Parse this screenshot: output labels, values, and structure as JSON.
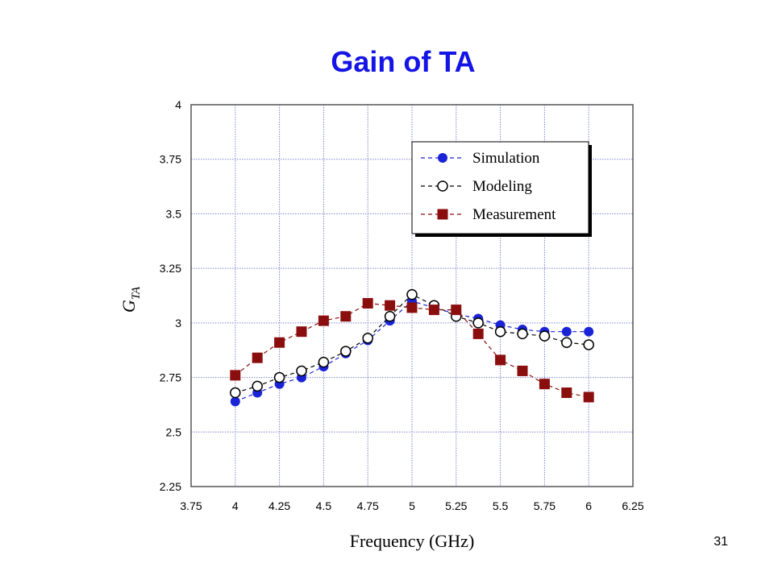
{
  "slide": {
    "title": "Gain of TA",
    "page_number": "31"
  },
  "colors": {
    "simulation": "#1a24d6",
    "modeling": "#000000",
    "measurement": "#8b0e0e",
    "grid": "#7f86cf",
    "title": "#1414e6"
  },
  "chart_data": {
    "type": "line",
    "title": "Gain of TA",
    "xlabel": "Frequency (GHz)",
    "ylabel": "G_TA",
    "ylabel_main": "G",
    "ylabel_sub": "TA",
    "xlim": [
      3.75,
      6.25
    ],
    "ylim": [
      2.25,
      4
    ],
    "x_ticks": [
      "3.75",
      "4",
      "4.25",
      "4.5",
      "4.75",
      "5",
      "5.25",
      "5.5",
      "5.75",
      "6",
      "6.25"
    ],
    "y_ticks": [
      "2.25",
      "2.5",
      "2.75",
      "3",
      "3.25",
      "3.5",
      "3.75",
      "4"
    ],
    "grid": true,
    "legend_position": "top-right",
    "series": [
      {
        "name": "Simulation",
        "marker": "filled-circle",
        "color_key": "simulation",
        "x": [
          4,
          4.125,
          4.25,
          4.375,
          4.5,
          4.625,
          4.75,
          4.875,
          5,
          5.125,
          5.25,
          5.375,
          5.5,
          5.625,
          5.75,
          5.875,
          6
        ],
        "y": [
          2.64,
          2.68,
          2.72,
          2.75,
          2.8,
          2.86,
          2.92,
          3.01,
          3.1,
          3.07,
          3.04,
          3.02,
          2.99,
          2.97,
          2.96,
          2.96,
          2.96
        ]
      },
      {
        "name": "Modeling",
        "marker": "open-circle",
        "color_key": "modeling",
        "x": [
          4,
          4.125,
          4.25,
          4.375,
          4.5,
          4.625,
          4.75,
          4.875,
          5,
          5.125,
          5.25,
          5.375,
          5.5,
          5.625,
          5.75,
          5.875,
          6
        ],
        "y": [
          2.68,
          2.71,
          2.75,
          2.78,
          2.82,
          2.87,
          2.93,
          3.03,
          3.13,
          3.08,
          3.03,
          3.0,
          2.96,
          2.95,
          2.94,
          2.91,
          2.9
        ]
      },
      {
        "name": "Measurement",
        "marker": "filled-square",
        "color_key": "measurement",
        "x": [
          4,
          4.125,
          4.25,
          4.375,
          4.5,
          4.625,
          4.75,
          4.875,
          5,
          5.125,
          5.25,
          5.375,
          5.5,
          5.625,
          5.75,
          5.875,
          6
        ],
        "y": [
          2.76,
          2.84,
          2.91,
          2.96,
          3.01,
          3.03,
          3.09,
          3.08,
          3.07,
          3.06,
          3.06,
          2.95,
          2.83,
          2.78,
          2.72,
          2.68,
          2.66
        ]
      }
    ]
  }
}
